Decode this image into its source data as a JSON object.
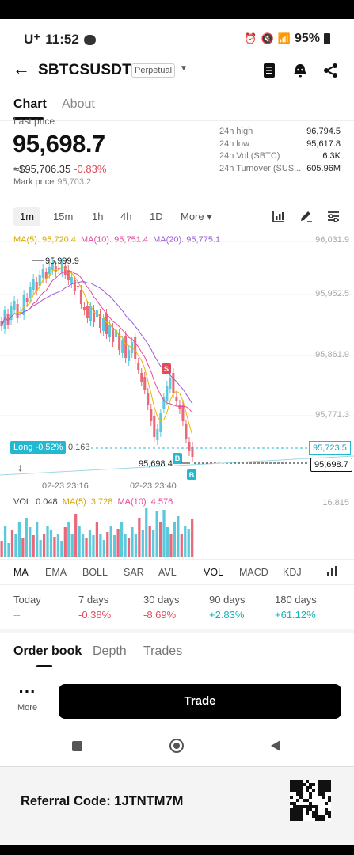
{
  "status": {
    "carrier": "U⁺",
    "time": "11:52",
    "battery": "95%"
  },
  "header": {
    "symbol": "SBTCSUSDT",
    "badge": "Perpetual"
  },
  "tabs": [
    "Chart",
    "About"
  ],
  "price": {
    "last_label": "Last price",
    "last": "95,698.7",
    "usd": "≈$95,706.35",
    "change_pct": "-0.83%",
    "mark_label": "Mark price",
    "mark_value": "95,703.2"
  },
  "stats": [
    {
      "k": "24h high",
      "v": "96,794.5"
    },
    {
      "k": "24h low",
      "v": "95,617.8"
    },
    {
      "k": "24h Vol (SBTC)",
      "v": "6.3K"
    },
    {
      "k": "24h Turnover (SUS...",
      "v": "605.96M"
    }
  ],
  "timeframes": {
    "items": [
      "1m",
      "15m",
      "1h",
      "4h",
      "1D"
    ],
    "more": "More ▾",
    "selected": "1m"
  },
  "ma_legend": {
    "ma5": "MA(5): 95,720.4",
    "ma10": "MA(10): 95,751.4",
    "ma20": "MA(20): 95,775.1"
  },
  "chart": {
    "right_labels": [
      "96,031.9",
      "95,952.5",
      "95,861.9",
      "95,771.3"
    ],
    "high_label": "95,999.9",
    "low_label": "95,698.4",
    "long_label": "Long -0.52%",
    "long_value": "0.163",
    "price_box_cyan": "95,723.5",
    "price_box_last": "95,698.7",
    "x_labels": [
      "02-23 23:16",
      "02-23 23:40"
    ],
    "marker_s": "S",
    "marker_b": "B"
  },
  "vol_legend": {
    "vol": "VOL: 0.048",
    "ma5": "MA(5): 3.728",
    "ma10": "MA(10): 4.576",
    "right": "16.815"
  },
  "colors": {
    "up": "#5bc8dc",
    "down": "#e86a7a",
    "ma5": "#e6b800",
    "ma10": "#e64a9a",
    "ma20": "#9a5bd6",
    "accent_green": "#17b3b0",
    "accent_red": "#e14b5a"
  },
  "indicators": [
    "MA",
    "EMA",
    "BOLL",
    "SAR",
    "AVL",
    "VOL",
    "MACD",
    "KDJ"
  ],
  "performance": [
    {
      "k": "Today",
      "v": "--",
      "cls": "muted"
    },
    {
      "k": "7 days",
      "v": "-0.38%",
      "cls": "neg"
    },
    {
      "k": "30 days",
      "v": "-8.69%",
      "cls": "neg"
    },
    {
      "k": "90 days",
      "v": "+2.83%",
      "cls": "pos"
    },
    {
      "k": "180 days",
      "v": "+61.12%",
      "cls": "pos"
    }
  ],
  "bottom_tabs": [
    "Order book",
    "Depth",
    "Trades"
  ],
  "actions": {
    "more": "More",
    "trade": "Trade"
  },
  "footer": {
    "referral": "Referral Code: 1JTNTM7M"
  }
}
